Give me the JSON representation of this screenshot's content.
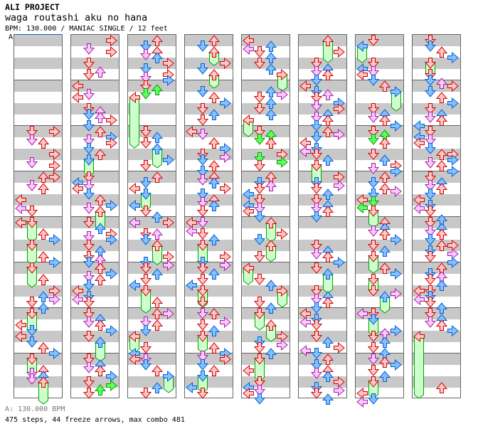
{
  "header": {
    "artist": "ALI PROJECT",
    "title": "waga routashi aku no hana",
    "meta": "BPM: 130.000 / MANIAC SINGLE / 12 feet",
    "section_label": "A"
  },
  "footer": {
    "bpm_line": "A: 130.000 BPM",
    "stats": "475 steps, 44 freeze arrows, max combo 481"
  },
  "colors": {
    "quarter": {
      "stroke": "#d00000",
      "fill": "#ffc8c8"
    },
    "eighth": {
      "stroke": "#0060d0",
      "fill": "#88c0ff"
    },
    "sixteenth": {
      "stroke": "#a020a0",
      "fill": "#ffc8ff"
    },
    "twelfth": {
      "stroke": "#00a000",
      "fill": "#60ff60"
    },
    "freeze": {
      "stroke": "#00a000",
      "fill": "#ccffcc"
    },
    "bpm_marker": "#0060d0"
  },
  "columns": [
    [
      "2 0 D r",
      "2 0 R r",
      "2 3 D p",
      "2 4 U r",
      "2 8 R r",
      "2 11 D p",
      "2 12 R r",
      "3 0 U r",
      "3 0 R r",
      "3 3 D p",
      "3 4 U r",
      "3 8 L r",
      "3 11 L p",
      "3 12 D r",
      "4 0 L r",
      "4 0 D r 4",
      "4 4 U r",
      "4 6 R b",
      "4 8 D r 4",
      "4 12 U r",
      "4 14 R b",
      "5 0 D r 4",
      "5 4 U r",
      "5 8 R r",
      "5 10 U b",
      "5 11 R p",
      "5 12 D r",
      "5 14 U b",
      "6 0 D r 4",
      "6 4 L r",
      "6 6 D b",
      "6 8 L r",
      "6 10 D b",
      "6 12 U r",
      "6 14 R b",
      "7 0 D r 3",
      "7 4 U r",
      "7 5 D p",
      "7 6 U b",
      "7 7 D p",
      "7 8 U r 5"
    ],
    [
      "0 0 R r",
      "0 3 D p",
      "0 4 R r",
      "0 8 D r",
      "0 11 U p",
      "0 12 D r",
      "1 0 L r",
      "1 3 D p",
      "1 4 L r",
      "1 8 D r",
      "1 9 U p",
      "1 10 D b",
      "1 11 U p",
      "1 12 R r",
      "1 14 D b",
      "2 0 U r",
      "2 2 R b",
      "2 3 D p",
      "2 4 R r",
      "2 6 D b",
      "2 8 U r",
      "2 10 D b 3",
      "3 0 D r",
      "3 2 L b",
      "3 3 D p",
      "3 4 L r",
      "3 6 D b",
      "3 8 U r",
      "3 10 R b",
      "3 11 D p",
      "3 12 U r 4",
      "4 0 D r",
      "4 2 U b",
      "4 4 R r",
      "4 5 D p",
      "4 6 R b",
      "4 8 D r",
      "4 10 U b",
      "4 12 D r",
      "4 13 U p",
      "4 14 D b",
      "5 0 U r",
      "5 2 R b",
      "5 3 D p",
      "5 4 U r",
      "5 6 D b",
      "5 8 L r",
      "5 10 D b",
      "5 11 L p",
      "5 12 D r",
      "6 0 D r",
      "6 2 U b",
      "6 3 D p",
      "6 4 U r",
      "6 6 R b",
      "6 8 D r",
      "6 10 U b 4",
      "7 0 D r",
      "7 2 U b",
      "7 3 D p",
      "7 4 U r",
      "7 6 R b",
      "7 8 D r",
      "7 10.67 U g",
      "7 9.33 R g",
      "7 12 D r"
    ],
    [
      "0 0 U r",
      "0 2 D b",
      "0 4 U r",
      "0 5 D p",
      "0 6 U b",
      "0 8 R r",
      "0 10 D b",
      "0 12 R r",
      "0 13 D p",
      "0 14 R b",
      "1 0 D r",
      "1 1.33 U g",
      "1 2.67 D g",
      "1 4 L r 15",
      "2 0 D r",
      "2 2 U b",
      "2 4 D r",
      "2 6 U b 4",
      "2 10 R b",
      "2 12 D r",
      "3 0 U r",
      "3 2 D b",
      "3 4 L r",
      "3 6 D b 3",
      "3 10 L b",
      "3 12 D r",
      "3 14 U b",
      "4 0 R r",
      "4 0 L p",
      "4 4 D r",
      "4 4 U p",
      "4 6 D b",
      "4 8 U r 4",
      "4 12 R r",
      "4 14 D b",
      "4 15 R p",
      "5 0 D r",
      "5 2 U b",
      "5 4 D r",
      "5 6 L b",
      "5 8 D r 5",
      "5 12 U r",
      "6 0 U r",
      "6 0 R p",
      "6 3 D p",
      "6 4 U r",
      "6 6 D b",
      "6 8 L r 3",
      "6 12 D r",
      "6 14 L b",
      "7 0 L r",
      "7 0 D p",
      "7 2 D b",
      "7 4 U r",
      "7 6 R b 3",
      "7 10 U b",
      "7 12 D r"
    ],
    [
      "0 0 U r",
      "0 2 D b",
      "0 4 U r 2",
      "0 8 R r",
      "0 10 D b",
      "0 12 U r 2",
      "1 2 D b",
      "1 4 U r",
      "1 6 R b",
      "1 8 D r",
      "1 10 U b",
      "1 12 D r",
      "2 0 L r",
      "2 1 D p",
      "2 4 U r",
      "2 6 R b",
      "2 8 D r",
      "2 9 R p",
      "2 10 D b",
      "2 12 U r",
      "2 14 D b",
      "3 0 U r",
      "3 1 D p",
      "3 2 U b",
      "3 4 R r",
      "3 6 D b",
      "3 8 U r",
      "3 9 D p",
      "3 10 U b",
      "3 12 D r",
      "4 0 L r",
      "4 0 D p",
      "4 3 L p",
      "4 4 D r",
      "4 6 U b",
      "4 8 D r 4",
      "4 12 R r",
      "4 14 D b",
      "4 15 R p",
      "5 0 D r",
      "5 2 U b",
      "5 4 D r",
      "5 6 L b",
      "5 8 D r 3",
      "5 12 D r",
      "6 0 D p",
      "6 0 U r",
      "6 3 R p",
      "6 4 D r",
      "6 6 U b",
      "6 8 D r 3",
      "6 12 U r",
      "6 14 R b",
      "6 15 D p",
      "7 0 R r",
      "7 2 D b",
      "7 4 U r",
      "7 6 D b 3",
      "7 10 L b",
      "7 12 D r"
    ],
    [
      "0 0 L r",
      "0 2 U b",
      "0 3 L p",
      "0 4 D r",
      "0 6 U b",
      "0 8 D r",
      "0 10 U b",
      "0 12 R r 3",
      "1 2 U b",
      "1 3 R p",
      "1 4 D r",
      "1 6 U b",
      "1 8 D r",
      "1 10 U b",
      "1 12 L r 3",
      "2 0 D r",
      "2 1.33 U g",
      "2 2.67 D g",
      "2 4 U r",
      "2 8 R r",
      "2 9.33 D g",
      "2 10.67 R g",
      "2 12 D r",
      "3 0 U r",
      "3 2 D b",
      "3 3 U p",
      "3 4 D r",
      "3 6 L b",
      "3 8 D r",
      "3 10 L b",
      "3 11 D p",
      "3 12 L r",
      "3 14 D b",
      "4 0 U r 4",
      "4 4 R r",
      "4 6 D b",
      "4 8 U r 3",
      "4 12 D r",
      "5 0 L r 3",
      "5 4 D r",
      "5 6 U b",
      "5 8 R r 3",
      "5 12 D r",
      "5 14 U b",
      "6 0 D r 3",
      "6 4 U r 3",
      "6 8 R r",
      "6 10 D b",
      "6 11 R p",
      "6 12 D r",
      "6 14 U b",
      "7 0 D r 5",
      "7 4 L r",
      "7 8 D r",
      "7 10 L b",
      "7 11 D p",
      "7 12 L r",
      "7 14 D b"
    ],
    [
      "0 0 U r 5",
      "0 4 R r",
      "0 8 D r",
      "0 10 U b",
      "0 11 D p",
      "0 12 U r",
      "0 14 D b",
      "1 0 L r",
      "1 2 D b",
      "1 3 U p",
      "1 4 D r",
      "1 6 R b",
      "1 7 D p",
      "1 8 R r",
      "1 10 U b",
      "1 11 D p",
      "1 12 U r",
      "1 14 D b",
      "2 0 U r",
      "2 1 R p",
      "2 2 D b",
      "2 4 L r",
      "2 6 D b",
      "2 7 L p",
      "2 8 D r",
      "2 10 U b",
      "2 12 D r 4",
      "3 0 R r",
      "3 2 D b",
      "3 3 R p",
      "3 4 D r",
      "3 6 U b",
      "3 8 D r",
      "3 10 U b",
      "3 11 D p",
      "3 12 U r",
      "3 14 D b",
      "4 8 D r",
      "4 10 U b",
      "4 11 D p",
      "4 12 U r",
      "4 14 R b",
      "5 0 D r",
      "5 2 U b 4",
      "5 8 D r",
      "5 10 U b",
      "5 11 D p",
      "5 12 U r",
      "5 14 D b",
      "6 0 L r",
      "6 2 D b",
      "6 3 L p",
      "6 4 D r",
      "6 8 D r",
      "6 10 U b",
      "6 12 R r",
      "6 13 L p",
      "6 14 D b",
      "7 0 U r",
      "7 2 D b",
      "7 4 U r",
      "7 5 D p",
      "7 6 U b",
      "7 8 R r",
      "7 10 D b",
      "7 11 R p",
      "7 12 D r",
      "7 14 U b"
    ],
    [
      "0 0 D r",
      "0 2 L b 3",
      "0 8 D r",
      "0 10 L b",
      "0 11 D p",
      "0 12 L r",
      "0 14 D b",
      "1 0 U r",
      "1 2 R b 4",
      "1 8 D r",
      "1 10 U b",
      "1 11 D p",
      "1 12 U r",
      "1 14 R b",
      "2 0 D r",
      "2 1.33 U g",
      "2 2.67 D g",
      "2 4 U r",
      "2 8 D r",
      "2 10 U b",
      "2 12 R r",
      "2 13 D p",
      "2 14 R b",
      "3 0 U r",
      "3 2 D b",
      "3 4 U r",
      "3 5 R p",
      "3 6 D b",
      "3 8 L r",
      "3 8.67 D g",
      "3 10.67 L g",
      "3 12 D r 3",
      "4 0 U r",
      "4 2 U b",
      "4 3 D p",
      "4 4 U r",
      "4 6 R b",
      "4 8 D r",
      "4 10 U b",
      "4 12 D r 3",
      "5 0 U r",
      "5 2 R b",
      "5 4 D r 2",
      "5 8 D r",
      "5 9 R p",
      "5 10 U b 3",
      "6 0 L p",
      "6 0 D r",
      "6 2 D b 3",
      "6 6 R b",
      "6 7 U p",
      "6 8 D r",
      "6 10 U b",
      "6 12 D r",
      "6 14 U b",
      "7 0 D p",
      "7 1 U r",
      "7 2 R b",
      "7 4 D r",
      "7 6 U b",
      "7 8 D r 3",
      "7 12 L r",
      "7 14 D b",
      "7 15 L p"
    ],
    [
      "0 0 D r",
      "0 2 D b",
      "0 4 U r",
      "0 6 R b",
      "0 8 D r 2",
      "0 12 D r",
      "0 14 D b",
      "0 15 U p",
      "1 0 R r",
      "1 2 D b",
      "1 4 U r",
      "1 6 R b",
      "1 8 D r",
      "1 10 U b",
      "1 11 D p",
      "1 12 U r",
      "1 14 L b",
      "2 0 D r",
      "2 2 L b",
      "2 3 D p",
      "2 4 L r",
      "2 6 D b",
      "2 8 U r",
      "2 8 R r",
      "2 10 R b",
      "2 11 D p",
      "2 12 U r",
      "2 14 R b",
      "3 0 D r",
      "3 2 U b",
      "3 3 D p",
      "3 4 U r",
      "3 6 D b",
      "3 8 L r",
      "3 10 D b",
      "3 11 L p",
      "3 12 D r",
      "3 15 U b",
      "4 0 D r",
      "4 2 U b",
      "4 3 D p",
      "4 4 U r",
      "4 6 D b",
      "4 8 U r",
      "4 8 R r",
      "4 10 D b",
      "4 11 R p",
      "4 12 D r",
      "4 14 R b",
      "5 0 U r",
      "5 2 D b",
      "5 3 U p",
      "5 4 D r",
      "5 6 U b",
      "5 8 L r",
      "5 8 D r",
      "5 10 D b",
      "5 11 L p",
      "5 12 D r",
      "5 14 U b",
      "6 0 D r",
      "6 2 U b",
      "6 3 D p",
      "6 4 U r",
      "6 6 R b",
      "6 8 L r 19",
      "7 10 U r"
    ]
  ]
}
